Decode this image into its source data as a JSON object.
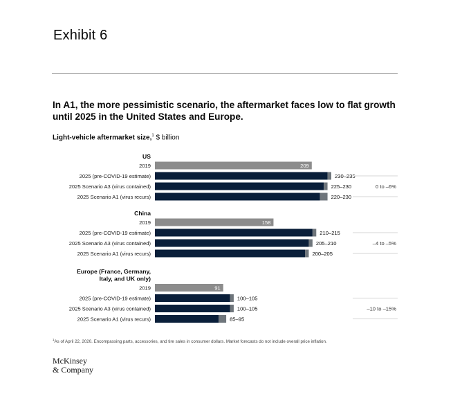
{
  "exhibit": "Exhibit 6",
  "headline": "In A1, the more pessimistic scenario, the aftermarket faces low to flat growth until 2025 in the United States and Europe.",
  "subtitle": {
    "bold": "Light-vehicle aftermarket size,",
    "sup": "1",
    "unit": " $ billion"
  },
  "footnote": {
    "sup": "1",
    "text": "As of April 22, 2020. Encompassing parts, accessories, and tire sales in consumer dollars. Market forecasts do not include overall price inflation."
  },
  "logo": {
    "line1": "McKinsey",
    "line2": "& Company"
  },
  "colors": {
    "base": "#8c8c8c",
    "forecast": "#0a1f3a",
    "range": "#6f767c",
    "grid": "#d4d4d4"
  },
  "chart_data": {
    "type": "bar",
    "orientation": "horizontal",
    "xlim": [
      0,
      240
    ],
    "groups": [
      {
        "name": "US",
        "growth": "0 to –6%",
        "rows": [
          {
            "label": "2019",
            "value": 209,
            "value_label": "209",
            "kind": "base"
          },
          {
            "label": "2025 (pre-COVID-19 estimate)",
            "low": 230,
            "high": 235,
            "value_label": "230–235",
            "kind": "forecast"
          },
          {
            "label": "2025 Scenario A3 (virus contained)",
            "low": 225,
            "high": 230,
            "value_label": "225–230",
            "kind": "forecast"
          },
          {
            "label": "2025 Scenario A1 (virus recurs)",
            "low": 220,
            "high": 230,
            "value_label": "220–230",
            "kind": "forecast"
          }
        ]
      },
      {
        "name": "China",
        "growth": "–4 to –5%",
        "rows": [
          {
            "label": "2019",
            "value": 158,
            "value_label": "158",
            "kind": "base"
          },
          {
            "label": "2025 (pre-COVID-19 estimate)",
            "low": 210,
            "high": 215,
            "value_label": "210–215",
            "kind": "forecast"
          },
          {
            "label": "2025 Scenario A3 (virus contained)",
            "low": 205,
            "high": 210,
            "value_label": "205–210",
            "kind": "forecast"
          },
          {
            "label": "2025 Scenario A1 (virus recurs)",
            "low": 200,
            "high": 205,
            "value_label": "200–205",
            "kind": "forecast"
          }
        ]
      },
      {
        "name": "Europe (France, Germany, Italy, and UK only)",
        "name_lines": [
          "Europe (France, Germany,",
          "Italy, and UK only)"
        ],
        "growth": "–10 to –15%",
        "rows": [
          {
            "label": "2019",
            "value": 91,
            "value_label": "91",
            "kind": "base"
          },
          {
            "label": "2025 (pre-COVID-19 estimate)",
            "low": 100,
            "high": 105,
            "value_label": "100–105",
            "kind": "forecast"
          },
          {
            "label": "2025 Scenario A3 (virus contained)",
            "low": 100,
            "high": 105,
            "value_label": "100–105",
            "kind": "forecast"
          },
          {
            "label": "2025 Scenario A1 (virus recurs)",
            "low": 85,
            "high": 95,
            "value_label": "85–95",
            "kind": "forecast"
          }
        ]
      }
    ]
  }
}
